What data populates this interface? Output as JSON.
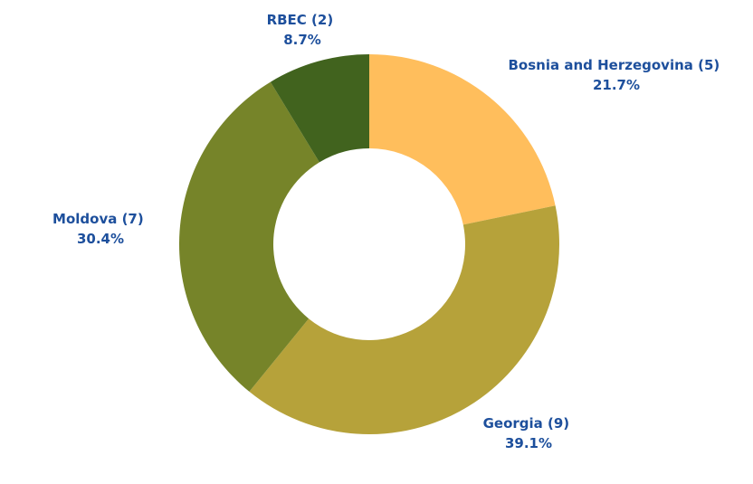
{
  "chart_data": {
    "type": "pie",
    "variant": "donut",
    "title": "",
    "categories": [
      "Bosnia and Herzegovina",
      "Georgia",
      "Moldova",
      "RBEC"
    ],
    "values": [
      5,
      9,
      7,
      2
    ],
    "series": [
      {
        "values": [
          5,
          9,
          7,
          2
        ]
      }
    ],
    "labels": [
      {
        "name": "Bosnia and Herzegovina (5)",
        "percent": "21.7%"
      },
      {
        "name": "Georgia (9)",
        "percent": "39.1%"
      },
      {
        "name": "Moldova (7)",
        "percent": "30.4%"
      },
      {
        "name": "RBEC (2)",
        "percent": "8.7%"
      }
    ],
    "colors": [
      "#ffbe5c",
      "#b6a23a",
      "#768429",
      "#41631e"
    ],
    "label_color": "#1d4f9c",
    "start_angle": "12 o'clock",
    "direction": "clockwise",
    "legend": "none"
  }
}
